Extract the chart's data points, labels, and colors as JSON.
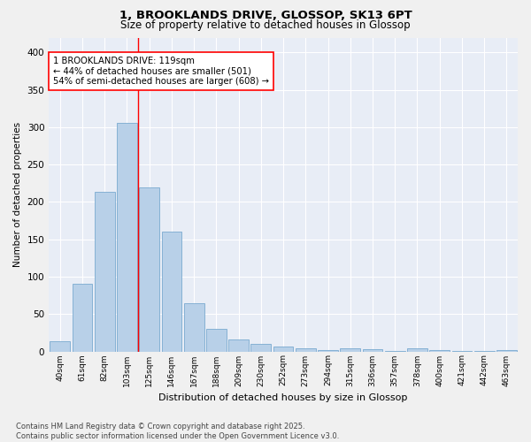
{
  "title1": "1, BROOKLANDS DRIVE, GLOSSOP, SK13 6PT",
  "title2": "Size of property relative to detached houses in Glossop",
  "xlabel": "Distribution of detached houses by size in Glossop",
  "ylabel": "Number of detached properties",
  "bar_color": "#b8d0e8",
  "bar_edge_color": "#7aaad0",
  "bg_color": "#dde4f0",
  "plot_bg_color": "#e8edf6",
  "grid_color": "#ffffff",
  "fig_bg_color": "#f0f0f0",
  "categories": [
    "40sqm",
    "61sqm",
    "82sqm",
    "103sqm",
    "125sqm",
    "146sqm",
    "167sqm",
    "188sqm",
    "209sqm",
    "230sqm",
    "252sqm",
    "273sqm",
    "294sqm",
    "315sqm",
    "336sqm",
    "357sqm",
    "378sqm",
    "400sqm",
    "421sqm",
    "442sqm",
    "463sqm"
  ],
  "values": [
    14,
    90,
    213,
    306,
    219,
    160,
    64,
    30,
    16,
    10,
    6,
    4,
    2,
    4,
    3,
    1,
    4,
    2,
    1,
    1,
    2
  ],
  "annotation_text": "1 BROOKLANDS DRIVE: 119sqm\n← 44% of detached houses are smaller (501)\n54% of semi-detached houses are larger (608) →",
  "vline_x": 3.5,
  "footnote": "Contains HM Land Registry data © Crown copyright and database right 2025.\nContains public sector information licensed under the Open Government Licence v3.0.",
  "ylim": [
    0,
    420
  ],
  "yticks": [
    0,
    50,
    100,
    150,
    200,
    250,
    300,
    350,
    400
  ]
}
